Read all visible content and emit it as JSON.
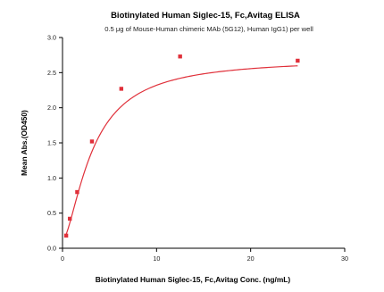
{
  "chart_data": {
    "type": "scatter",
    "title": "Biotinylated Human Siglec-15, Fc,Avitag ELISA",
    "subtitle": "0.5 μg of Mouse-Human chimeric MAb (5G12), Human IgG1) per well",
    "xlabel": "Biotinylated Human Siglec-15, Fc,Avitag Conc. (ng/mL)",
    "ylabel": "Mean Abs.(OD450)",
    "xlim": [
      0,
      30
    ],
    "ylim": [
      0.0,
      3.0
    ],
    "x_ticks": [
      0,
      10,
      20,
      30
    ],
    "y_ticks": [
      0.0,
      0.5,
      1.0,
      1.5,
      2.0,
      2.5,
      3.0
    ],
    "y_tick_labels": [
      "0.0",
      "0.5",
      "1.0",
      "1.5",
      "2.0",
      "2.5",
      "3.0"
    ],
    "grid": false,
    "series": [
      {
        "x": [
          0.39,
          0.78,
          1.56,
          3.13,
          6.25,
          12.5,
          25
        ],
        "y": [
          0.18,
          0.42,
          0.8,
          1.52,
          2.27,
          2.73,
          2.67
        ],
        "color": "#e0303a",
        "marker": "square",
        "fit_curve": true
      }
    ]
  }
}
